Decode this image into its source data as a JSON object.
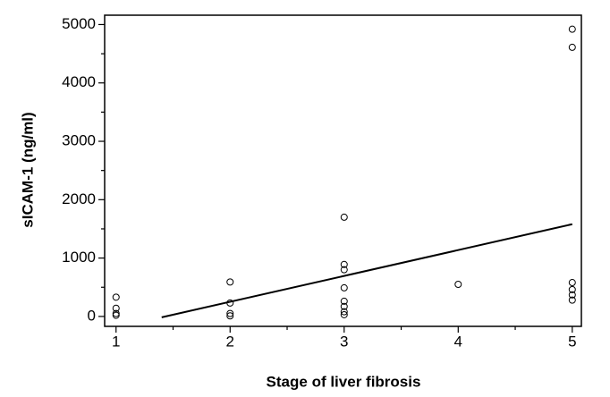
{
  "chart_data": {
    "type": "scatter",
    "x_label": "Stage of liver fibrosis",
    "y_label": "sICAM-1 (ng/ml)",
    "xlim": [
      0.9,
      5.08
    ],
    "xticks": [
      1,
      2,
      3,
      4,
      5
    ],
    "xminorticks": [
      1.5,
      2.5,
      3.5,
      4.5
    ],
    "ylim": [
      -170,
      5160
    ],
    "yticks": [
      0,
      1000,
      2000,
      3000,
      4000,
      5000
    ],
    "yminorticks": [
      500,
      1500,
      2500,
      3500,
      4500
    ],
    "series": [
      {
        "type": "scatter",
        "color": "#000000",
        "x": [
          1,
          1,
          1,
          1,
          2,
          2,
          2,
          2,
          3,
          3,
          3,
          3,
          3,
          3,
          3,
          3,
          4,
          5,
          5,
          5,
          5,
          5,
          5
        ],
        "values": [
          330,
          140,
          50,
          20,
          590,
          230,
          50,
          10,
          1700,
          890,
          800,
          490,
          260,
          170,
          80,
          30,
          550,
          4920,
          4610,
          580,
          460,
          370,
          280
        ]
      },
      {
        "type": "line",
        "color": "#000000",
        "x": [
          1.4,
          5
        ],
        "values": [
          -15,
          1580
        ]
      }
    ]
  }
}
